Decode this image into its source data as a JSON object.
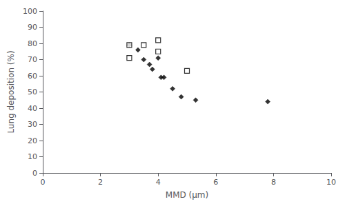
{
  "chart_data": {
    "type": "scatter",
    "xlabel": "MMD (μm)",
    "ylabel": "Lung deposition (%)",
    "xlim": [
      0,
      10
    ],
    "ylim": [
      0,
      100
    ],
    "xticks": [
      0,
      2,
      4,
      6,
      8,
      10
    ],
    "yticks": [
      0,
      10,
      20,
      30,
      40,
      50,
      60,
      70,
      80,
      90,
      100
    ],
    "grid": false,
    "series": [
      {
        "marker": "open_square",
        "color": "#000000",
        "x": [
          3.0,
          3.0,
          3.5,
          4.0,
          4.0,
          5.0
        ],
        "values": [
          79,
          71,
          79,
          82,
          75,
          63
        ]
      },
      {
        "marker": "diamond",
        "color": "#000000",
        "x": [
          3.0,
          3.3,
          3.5,
          3.7,
          3.8,
          4.0,
          4.1,
          4.2,
          4.5,
          4.8,
          5.3,
          7.8
        ],
        "values": [
          79,
          76,
          70,
          67,
          64,
          71,
          59,
          59,
          52,
          47,
          45,
          44
        ]
      }
    ]
  }
}
